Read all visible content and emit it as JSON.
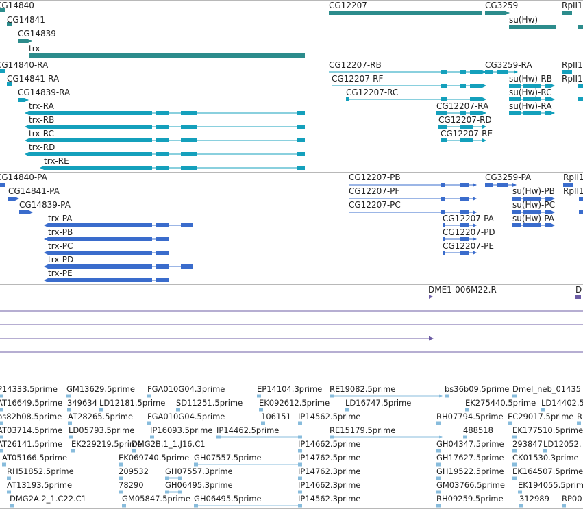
{
  "colors": {
    "gene": "#2c8c8c",
    "transcript": "#14a0bc",
    "protein": "#3a6ccc",
    "clone": "#6c5ca4",
    "est": "#88bcdc",
    "separator": "#b8b8b8"
  },
  "tracks": {
    "genes": {
      "labels": [
        "CG14840",
        "CG14841",
        "CG14839",
        "trx",
        "CG12207",
        "CG3259",
        "su(Hw)",
        "RpII1"
      ]
    },
    "transcripts": {
      "labels": [
        "CG14840-RA",
        "CG14841-RA",
        "CG14839-RA",
        "trx-RA",
        "trx-RB",
        "trx-RC",
        "trx-RD",
        "trx-RE",
        "CG12207-RB",
        "CG12207-RF",
        "CG12207-RC",
        "CG12207-RA",
        "CG12207-RD",
        "CG12207-RE",
        "CG3259-RA",
        "su(Hw)-RB",
        "su(Hw)-RC",
        "su(Hw)-RA",
        "RpII1",
        "RpII1"
      ]
    },
    "proteins": {
      "labels": [
        "CG14840-PA",
        "CG14841-PA",
        "CG14839-PA",
        "trx-PA",
        "trx-PB",
        "trx-PC",
        "trx-PD",
        "trx-PE",
        "CG12207-PB",
        "CG12207-PF",
        "CG12207-PC",
        "CG12207-PA",
        "CG12207-PD",
        "CG12207-PE",
        "CG3259-PA",
        "su(Hw)-PB",
        "su(Hw)-PC",
        "su(Hw)-PA",
        "RpII1",
        "RpII1"
      ]
    },
    "clones": {
      "labels": [
        "DME1-006M22.R",
        "D"
      ]
    },
    "ests": {
      "labels": [
        "P14333.5prime",
        "GM13629.5prime",
        "FGA010G04.3prime",
        "EP14104.3prime",
        "RE19082.5prime",
        "bs36b09.5prime",
        "Dmel_neb_01435",
        "AT16649.5prime",
        "349634",
        "LD12181.5prime",
        "SD11251.5prime",
        "EK092612.5prime",
        "LD16747.5prime",
        "EK275440.5prime",
        "LD14402.5",
        "bs82h08.5prime",
        "AT28265.5prime",
        "FGA010G04.5prime",
        "106151",
        "IP14562.5prime",
        "RH07794.5prime",
        "EC29017.5prime",
        "R",
        "AT03714.5prime",
        "LD05793.5prime",
        "IP16093.5prime",
        "IP14462.5prime",
        "RE15179.5prime",
        "488518",
        "EK177510.5prime",
        "AT26141.5prime",
        "EK229219.5prime",
        "DMG2B.1_1.J16.C1",
        "IP14662.5prime",
        "GH04347.5prime",
        "293847",
        "LD12052.",
        "AT05166.5prime",
        "EK069740.5prime",
        "GH07557.5prime",
        "IP14762.5prime",
        "GH17627.5prime",
        "CK01530.3prime",
        "RH51852.5prime",
        "209532",
        "GH07557.3prime",
        "IP14762.3prime",
        "GH19522.5prime",
        "EK164507.5prime",
        "AT13193.5prime",
        "78290",
        "GH06495.3prime",
        "IP14662.3prime",
        "GM03766.5prime",
        "EK194055.5prime",
        "DMG2A.2_1.C22.C1",
        "GM05847.5prime",
        "GH06495.5prime",
        "IP14562.3prime",
        "RH09259.5prime",
        "312989",
        "RP00"
      ]
    }
  }
}
